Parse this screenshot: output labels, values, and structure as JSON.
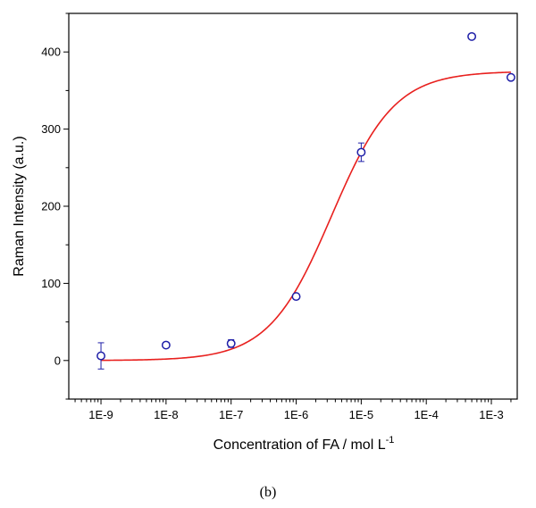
{
  "caption": "(b)",
  "chart_data": {
    "type": "scatter",
    "xlabel": {
      "main": "Concentration of FA / mol L",
      "superscript": "-1"
    },
    "ylabel": "Raman Intensity (a.u.)",
    "xscale": "log",
    "xlim": [
      3.2e-10,
      0.0025
    ],
    "ylim": [
      -50,
      450
    ],
    "x_ticks": [
      {
        "value": 1e-09,
        "label": "1E-9"
      },
      {
        "value": 1e-08,
        "label": "1E-8"
      },
      {
        "value": 1e-07,
        "label": "1E-7"
      },
      {
        "value": 1e-06,
        "label": "1E-6"
      },
      {
        "value": 1e-05,
        "label": "1E-5"
      },
      {
        "value": 0.0001,
        "label": "1E-4"
      },
      {
        "value": 0.001,
        "label": "1E-3"
      }
    ],
    "y_ticks": [
      {
        "value": 0,
        "label": "0"
      },
      {
        "value": 100,
        "label": "100"
      },
      {
        "value": 200,
        "label": "200"
      },
      {
        "value": 300,
        "label": "300"
      },
      {
        "value": 400,
        "label": "400"
      }
    ],
    "grid": false,
    "points": [
      {
        "x": 1e-09,
        "y": 6,
        "err": 17
      },
      {
        "x": 1e-08,
        "y": 20,
        "err": 3
      },
      {
        "x": 1e-07,
        "y": 22,
        "err": 5
      },
      {
        "x": 1e-06,
        "y": 83,
        "err": 3
      },
      {
        "x": 1e-05,
        "y": 270,
        "err": 12
      },
      {
        "x": 0.0005,
        "y": 420,
        "err": 2
      },
      {
        "x": 0.002,
        "y": 367,
        "err": 2
      }
    ],
    "fit": {
      "form": "sigmoidal",
      "bottom": 0,
      "top": 375,
      "x0": 3.5e-06,
      "p": 0.9
    },
    "colors": {
      "points": "#1f1fa8",
      "fit": "#e8201e",
      "axes": "#000000"
    }
  }
}
